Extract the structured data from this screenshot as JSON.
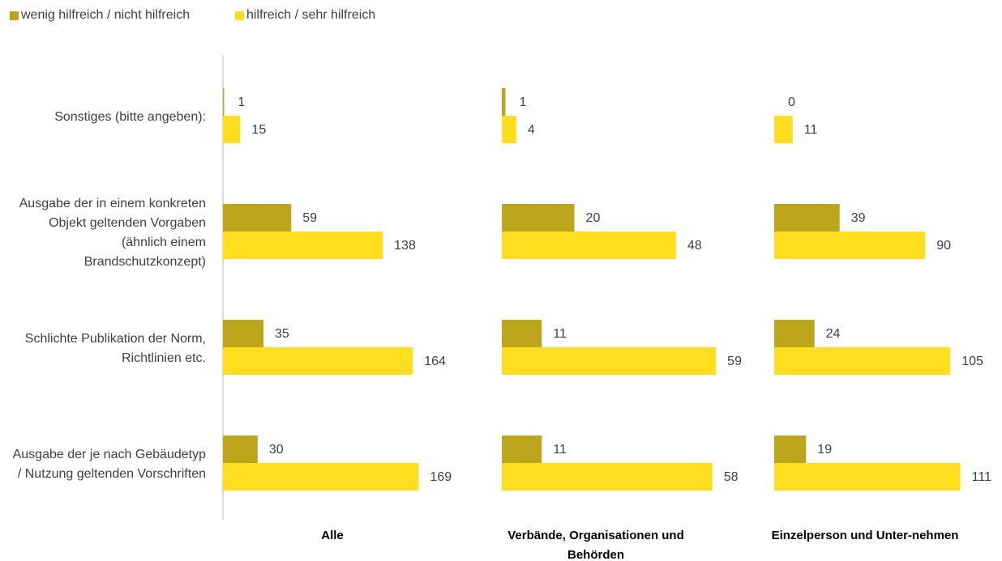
{
  "chart_data": {
    "type": "bar",
    "orientation": "horizontal",
    "categories": [
      "Sonstiges (bitte angeben):",
      "Ausgabe der in einem konkreten Objekt geltenden Vorgaben (ähnlich einem Brandschutzkonzept)",
      "Schlichte Publikation der Norm, Richtlinien etc.",
      "Ausgabe der je nach Gebäudetyp / Nutzung geltenden Vorschriften"
    ],
    "series": [
      {
        "name": "wenig hilfreich / nicht hilfreich",
        "color": "#bda51c"
      },
      {
        "name": "hilfreich / sehr hilfreich",
        "color": "#ffdd1f"
      }
    ],
    "legend": "top-left",
    "panels": [
      {
        "title": "Alle",
        "xlim": [
          0,
          210
        ],
        "series": [
          {
            "values": [
              1,
              59,
              35,
              30
            ]
          },
          {
            "values": [
              15,
              138,
              164,
              169
            ]
          }
        ]
      },
      {
        "title": "Verbände, Organisationen und Behörden",
        "xlim": [
          0,
          67
        ],
        "series": [
          {
            "values": [
              1,
              20,
              11,
              11
            ]
          },
          {
            "values": [
              4,
              48,
              59,
              58
            ]
          }
        ]
      },
      {
        "title": "Einzelperson und Unter-nehmen",
        "xlim": [
          0,
          145
        ],
        "series": [
          {
            "values": [
              0,
              39,
              24,
              19
            ]
          },
          {
            "values": [
              11,
              90,
              105,
              111
            ]
          }
        ]
      }
    ]
  }
}
